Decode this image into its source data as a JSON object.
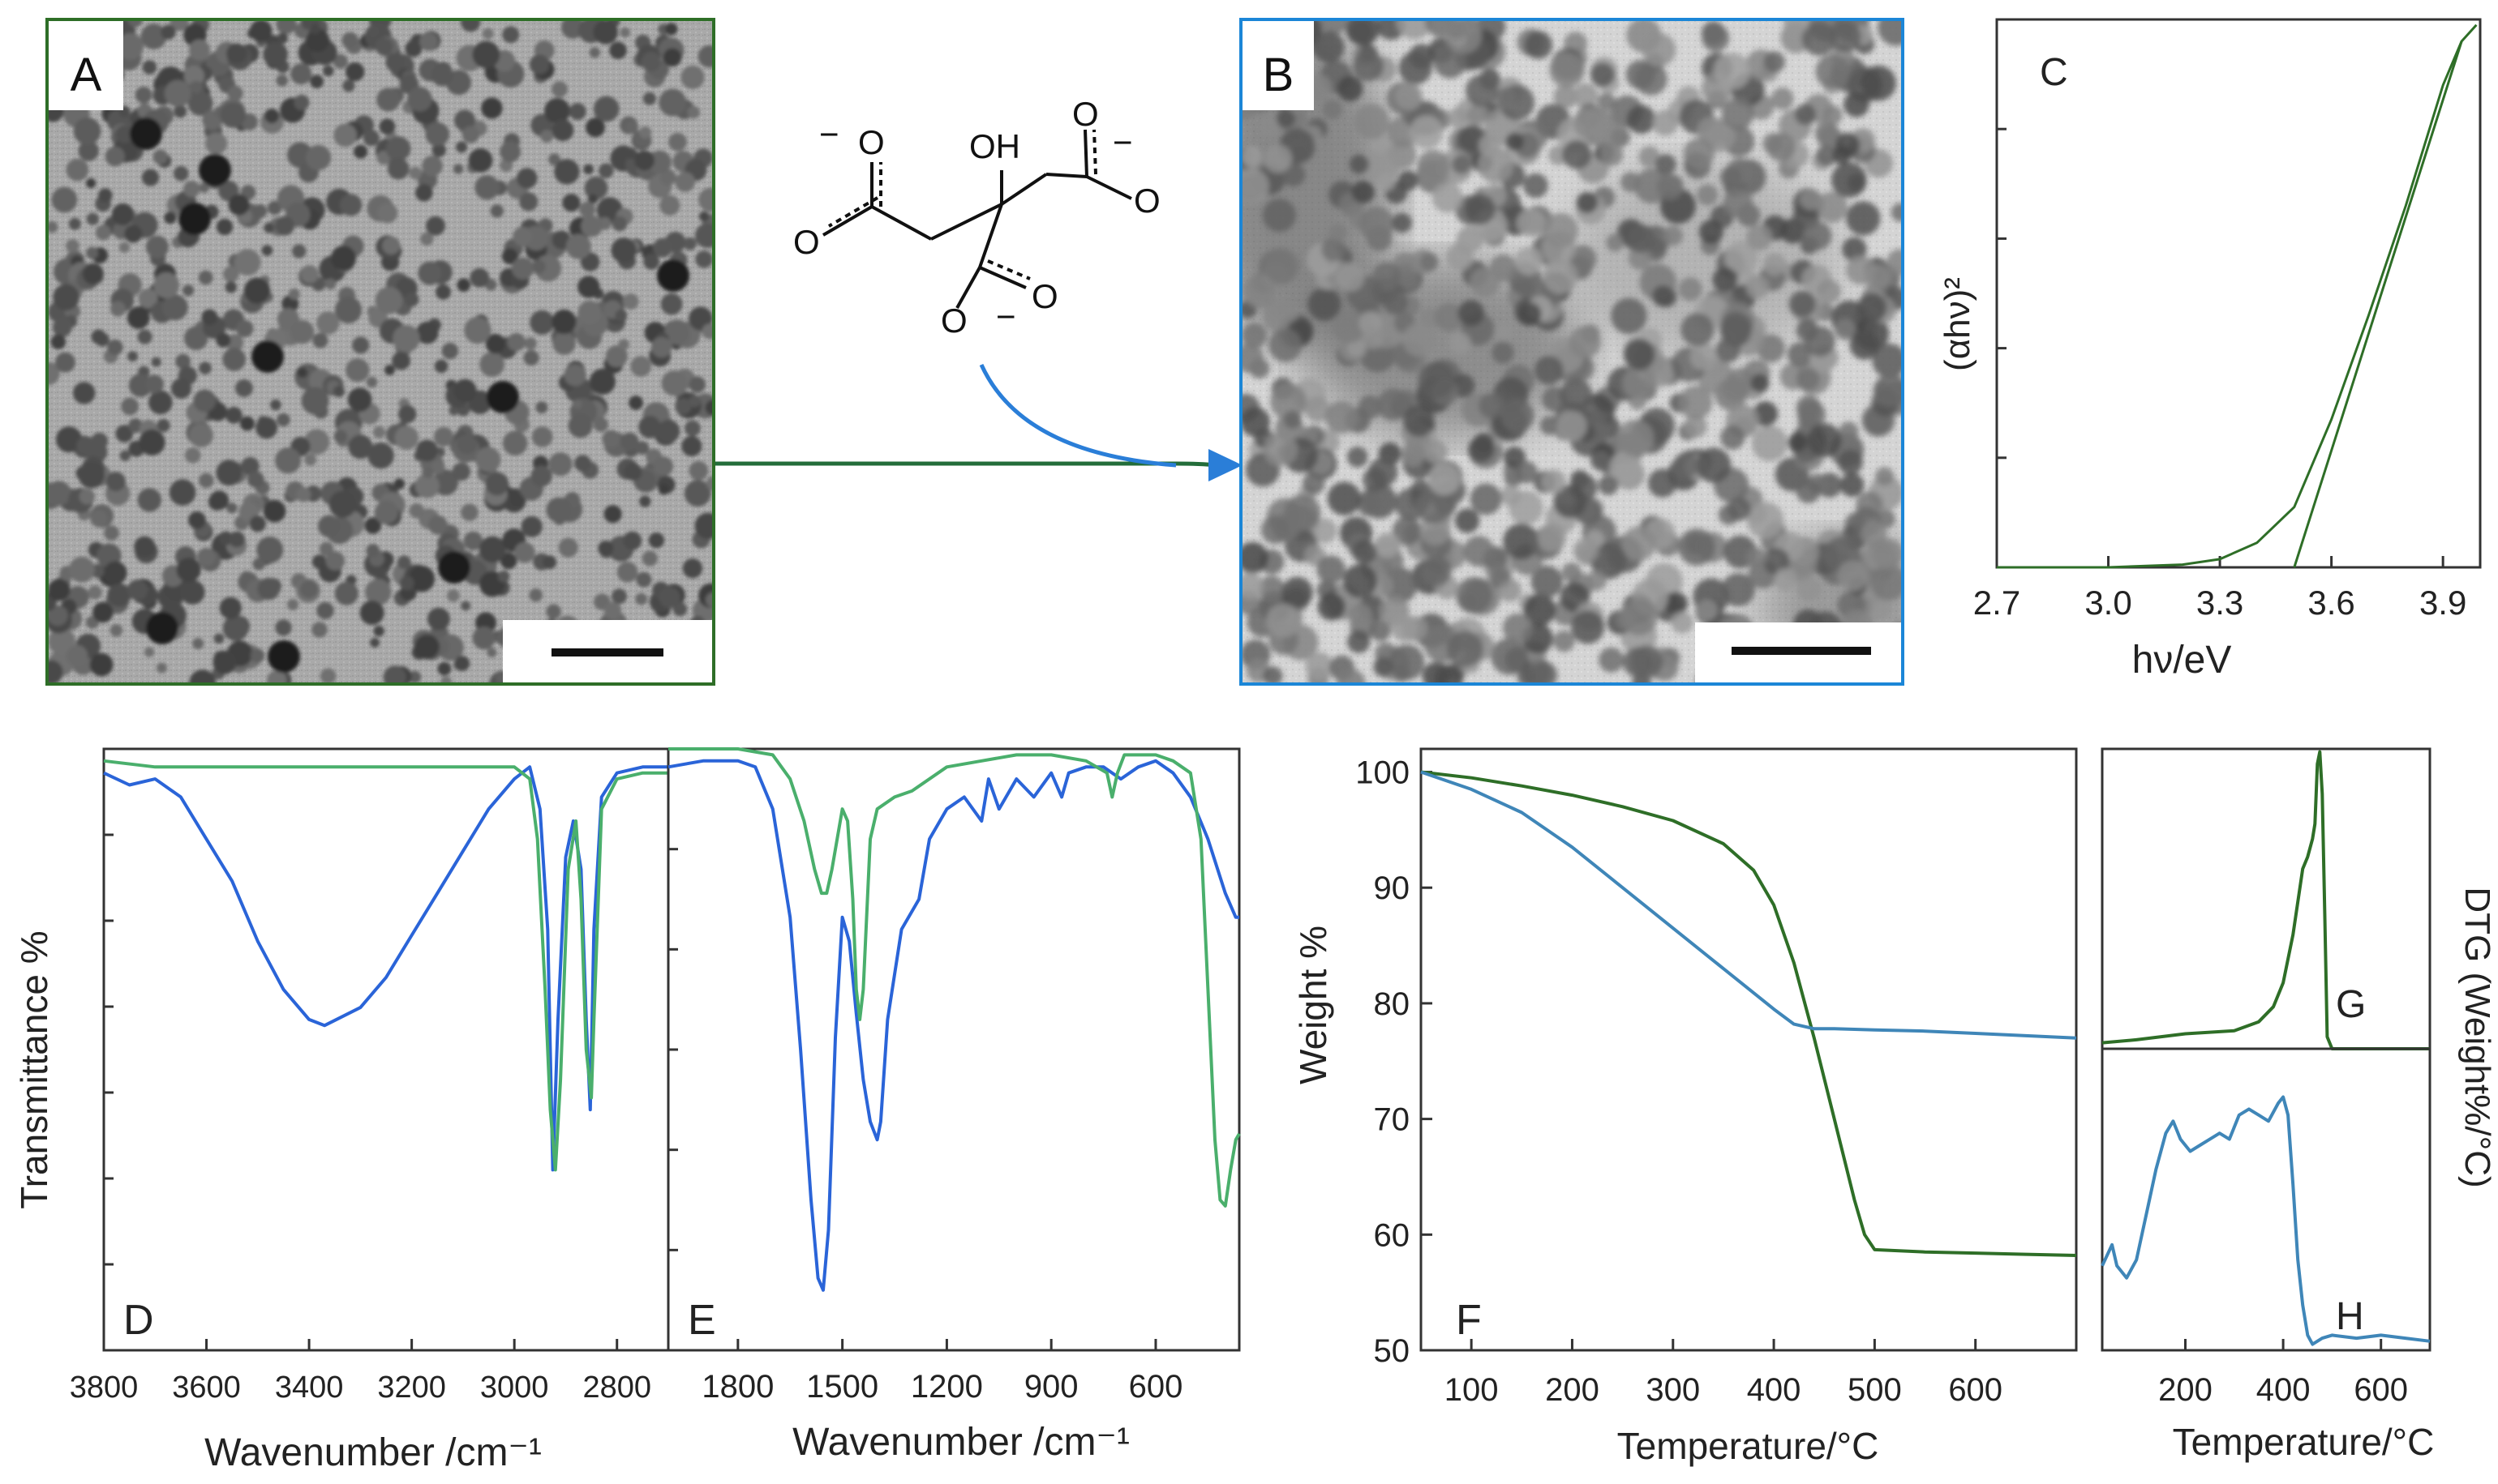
{
  "colors": {
    "green_dark": "#2e6e27",
    "green_light": "#4aaf6c",
    "blue": "#2a64d8",
    "blue_tga": "#3f86b8",
    "frame_green": "#2e6e27",
    "frame_blue": "#1b86d7",
    "axis": "#333333"
  },
  "panels": {
    "A": "A",
    "B": "B",
    "C": "C",
    "D": "D",
    "E": "E",
    "F": "F",
    "G": "G",
    "H": "H"
  },
  "molecule": {
    "oh": "OH",
    "o": "O",
    "charge": "−"
  },
  "chart_data": [
    {
      "id": "C",
      "type": "line",
      "title": "",
      "xlabel": "hν/eV",
      "ylabel": "(αhν)²",
      "xlim": [
        2.7,
        4.0
      ],
      "ylim": [
        0,
        1
      ],
      "x_ticks": [
        "2.7",
        "3.0",
        "3.3",
        "3.6",
        "3.9"
      ],
      "series": [
        {
          "name": "Tauc curve",
          "x": [
            2.7,
            3.0,
            3.2,
            3.3,
            3.4,
            3.5,
            3.6,
            3.7,
            3.8,
            3.9,
            3.95,
            3.99
          ],
          "y": [
            0.0,
            0.0,
            0.005,
            0.015,
            0.045,
            0.11,
            0.27,
            0.46,
            0.66,
            0.88,
            0.96,
            0.99
          ]
        },
        {
          "name": "Linear fit",
          "x": [
            3.5,
            3.95
          ],
          "y": [
            0.0,
            0.96
          ]
        }
      ]
    },
    {
      "id": "D",
      "type": "line",
      "xlabel": "Wavenumber /cm⁻¹",
      "ylabel": "Transmittance %",
      "xlim": [
        3800,
        2700
      ],
      "x_ticks": [
        "3800",
        "3600",
        "3400",
        "3200",
        "3000",
        "2800"
      ],
      "series": [
        {
          "name": "blue",
          "x": [
            3800,
            3750,
            3700,
            3650,
            3600,
            3550,
            3500,
            3450,
            3400,
            3370,
            3300,
            3250,
            3200,
            3150,
            3100,
            3050,
            3000,
            2970,
            2950,
            2935,
            2925,
            2915,
            2900,
            2885,
            2870,
            2860,
            2852,
            2845,
            2830,
            2800,
            2750,
            2700
          ],
          "y": [
            0.96,
            0.94,
            0.95,
            0.92,
            0.85,
            0.78,
            0.68,
            0.6,
            0.55,
            0.54,
            0.57,
            0.62,
            0.69,
            0.76,
            0.83,
            0.9,
            0.95,
            0.97,
            0.9,
            0.7,
            0.3,
            0.55,
            0.82,
            0.88,
            0.8,
            0.55,
            0.4,
            0.7,
            0.92,
            0.96,
            0.97,
            0.97
          ]
        },
        {
          "name": "green",
          "x": [
            3800,
            3700,
            3500,
            3300,
            3100,
            3000,
            2970,
            2955,
            2940,
            2930,
            2920,
            2910,
            2895,
            2880,
            2870,
            2860,
            2850,
            2845,
            2830,
            2800,
            2750,
            2700
          ],
          "y": [
            0.98,
            0.97,
            0.97,
            0.97,
            0.97,
            0.97,
            0.95,
            0.85,
            0.6,
            0.4,
            0.3,
            0.45,
            0.8,
            0.88,
            0.75,
            0.5,
            0.42,
            0.55,
            0.9,
            0.95,
            0.96,
            0.96
          ]
        }
      ]
    },
    {
      "id": "E",
      "type": "line",
      "xlabel": "Wavenumber /cm⁻¹",
      "xlim": [
        2000,
        360
      ],
      "x_ticks": [
        "1800",
        "1500",
        "1200",
        "900",
        "600"
      ],
      "series": [
        {
          "name": "blue",
          "x": [
            2000,
            1900,
            1800,
            1750,
            1700,
            1650,
            1620,
            1590,
            1570,
            1555,
            1540,
            1520,
            1500,
            1480,
            1460,
            1440,
            1420,
            1400,
            1390,
            1370,
            1330,
            1280,
            1250,
            1200,
            1150,
            1100,
            1080,
            1050,
            1000,
            950,
            900,
            870,
            850,
            800,
            750,
            700,
            650,
            600,
            550,
            500,
            450,
            400,
            370,
            360
          ],
          "y": [
            0.97,
            0.98,
            0.98,
            0.97,
            0.9,
            0.72,
            0.5,
            0.25,
            0.12,
            0.1,
            0.2,
            0.52,
            0.72,
            0.68,
            0.56,
            0.45,
            0.38,
            0.35,
            0.38,
            0.55,
            0.7,
            0.75,
            0.85,
            0.9,
            0.92,
            0.88,
            0.95,
            0.9,
            0.95,
            0.92,
            0.96,
            0.92,
            0.96,
            0.97,
            0.97,
            0.95,
            0.97,
            0.98,
            0.96,
            0.92,
            0.85,
            0.76,
            0.72,
            0.72
          ]
        },
        {
          "name": "green",
          "x": [
            2000,
            1900,
            1800,
            1700,
            1650,
            1610,
            1580,
            1560,
            1545,
            1530,
            1500,
            1485,
            1470,
            1460,
            1450,
            1440,
            1420,
            1400,
            1350,
            1300,
            1200,
            1100,
            1000,
            900,
            800,
            740,
            725,
            710,
            690,
            650,
            600,
            550,
            500,
            470,
            450,
            430,
            415,
            400,
            385,
            370,
            360
          ],
          "y": [
            1.0,
            1.0,
            1.0,
            0.99,
            0.95,
            0.88,
            0.8,
            0.76,
            0.76,
            0.8,
            0.9,
            0.88,
            0.75,
            0.6,
            0.55,
            0.6,
            0.85,
            0.9,
            0.92,
            0.93,
            0.97,
            0.98,
            0.99,
            0.99,
            0.98,
            0.96,
            0.92,
            0.96,
            0.99,
            0.99,
            0.99,
            0.98,
            0.96,
            0.85,
            0.6,
            0.35,
            0.25,
            0.24,
            0.3,
            0.35,
            0.36
          ]
        }
      ]
    },
    {
      "id": "F",
      "type": "line",
      "xlabel": "Temperature/°C",
      "ylabel": "Weight %",
      "xlim": [
        50,
        700
      ],
      "ylim": [
        50,
        102
      ],
      "x_ticks": [
        "100",
        "200",
        "300",
        "400",
        "500",
        "600"
      ],
      "y_ticks": [
        "50",
        "60",
        "70",
        "80",
        "90",
        "100"
      ],
      "series": [
        {
          "name": "green",
          "x": [
            50,
            100,
            150,
            200,
            250,
            300,
            350,
            380,
            400,
            420,
            440,
            460,
            480,
            490,
            500,
            550,
            600,
            650,
            700
          ],
          "y": [
            100,
            99.5,
            98.8,
            98,
            97,
            95.8,
            93.8,
            91.5,
            88.5,
            83.5,
            77,
            70,
            63,
            60,
            58.7,
            58.5,
            58.4,
            58.3,
            58.2
          ]
        },
        {
          "name": "blue",
          "x": [
            50,
            100,
            150,
            200,
            250,
            300,
            350,
            400,
            420,
            440,
            460,
            500,
            550,
            600,
            650,
            700
          ],
          "y": [
            100,
            98.5,
            96.5,
            93.5,
            90,
            86.5,
            83,
            79.5,
            78.2,
            77.8,
            77.8,
            77.7,
            77.6,
            77.4,
            77.2,
            77.0
          ]
        }
      ]
    },
    {
      "id": "G",
      "type": "line",
      "xlim": [
        30,
        700
      ],
      "ylim": [
        0,
        1
      ],
      "series": [
        {
          "name": "green",
          "x": [
            30,
            100,
            200,
            300,
            350,
            380,
            400,
            420,
            440,
            450,
            460,
            465,
            470,
            475,
            480,
            485,
            490,
            500,
            520,
            600,
            700
          ],
          "y": [
            0.02,
            0.03,
            0.05,
            0.06,
            0.09,
            0.14,
            0.22,
            0.38,
            0.6,
            0.64,
            0.7,
            0.75,
            0.95,
            0.99,
            0.85,
            0.45,
            0.04,
            0.0,
            0.0,
            0.0,
            0.0
          ]
        }
      ]
    },
    {
      "id": "H",
      "type": "line",
      "xlabel": "Temperature/°C",
      "xlim": [
        30,
        700
      ],
      "ylim": [
        0,
        1
      ],
      "x_ticks": [
        "200",
        "400",
        "600"
      ],
      "series": [
        {
          "name": "blue",
          "x": [
            30,
            50,
            60,
            80,
            100,
            120,
            140,
            160,
            175,
            190,
            210,
            230,
            250,
            270,
            290,
            310,
            330,
            350,
            370,
            390,
            400,
            410,
            420,
            430,
            440,
            450,
            460,
            470,
            480,
            500,
            550,
            600,
            650,
            700
          ],
          "y": [
            0.28,
            0.35,
            0.28,
            0.24,
            0.3,
            0.45,
            0.6,
            0.72,
            0.76,
            0.7,
            0.66,
            0.68,
            0.7,
            0.72,
            0.7,
            0.78,
            0.8,
            0.78,
            0.76,
            0.82,
            0.84,
            0.78,
            0.55,
            0.3,
            0.15,
            0.05,
            0.02,
            0.03,
            0.04,
            0.05,
            0.04,
            0.05,
            0.04,
            0.03
          ]
        }
      ]
    }
  ],
  "dtg_label": "DTG (Weight%/°C)"
}
